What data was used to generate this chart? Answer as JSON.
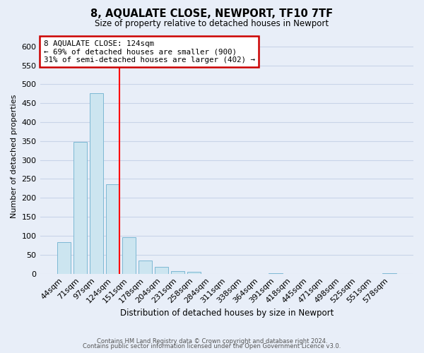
{
  "title": "8, AQUALATE CLOSE, NEWPORT, TF10 7TF",
  "subtitle": "Size of property relative to detached houses in Newport",
  "xlabel": "Distribution of detached houses by size in Newport",
  "ylabel": "Number of detached properties",
  "bar_labels": [
    "44sqm",
    "71sqm",
    "97sqm",
    "124sqm",
    "151sqm",
    "178sqm",
    "204sqm",
    "231sqm",
    "258sqm",
    "284sqm",
    "311sqm",
    "338sqm",
    "364sqm",
    "391sqm",
    "418sqm",
    "445sqm",
    "471sqm",
    "498sqm",
    "525sqm",
    "551sqm",
    "578sqm"
  ],
  "bar_values": [
    83,
    348,
    477,
    236,
    97,
    35,
    18,
    7,
    4,
    0,
    0,
    0,
    0,
    2,
    0,
    0,
    0,
    0,
    0,
    0,
    2
  ],
  "bar_color": "#cce5f0",
  "bar_edge_color": "#7db8d4",
  "vline_color": "red",
  "annotation_text": "8 AQUALATE CLOSE: 124sqm\n← 69% of detached houses are smaller (900)\n31% of semi-detached houses are larger (402) →",
  "annotation_box_color": "white",
  "annotation_box_edge": "#cc0000",
  "ylim": [
    0,
    620
  ],
  "yticks": [
    0,
    50,
    100,
    150,
    200,
    250,
    300,
    350,
    400,
    450,
    500,
    550,
    600
  ],
  "footer_line1": "Contains HM Land Registry data © Crown copyright and database right 2024.",
  "footer_line2": "Contains public sector information licensed under the Open Government Licence v3.0.",
  "background_color": "#e8eef8",
  "grid_color": "#c8d4e8"
}
